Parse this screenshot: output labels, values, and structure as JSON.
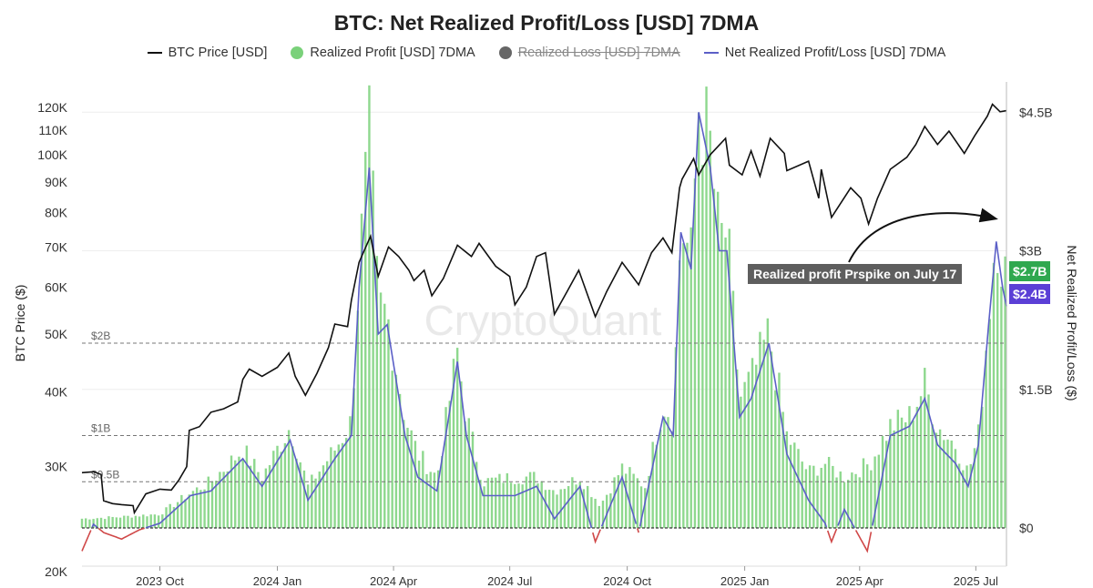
{
  "chart": {
    "title": "BTC: Net Realized Profit/Loss [USD] 7DMA",
    "watermark": "CryptoQuant",
    "legend": [
      {
        "label": "BTC Price [USD]",
        "marker": "line",
        "color": "#111111",
        "hidden": false
      },
      {
        "label": "Realized Profit [USD] 7DMA",
        "marker": "dot",
        "color": "#7ad17a",
        "hidden": false
      },
      {
        "label": "Realized Loss [USD] 7DMA",
        "marker": "dot",
        "color": "#666666",
        "hidden": true
      },
      {
        "label": "Net Realized Profit/Loss [USD] 7DMA",
        "marker": "line",
        "color": "#5b5fc7",
        "hidden": false
      }
    ],
    "annotation": "Realized profit Prspike on July 17",
    "badges": {
      "profit": {
        "label": "$2.7B",
        "color": "#2fa84f"
      },
      "net": {
        "label": "$2.4B",
        "color": "#5b3fd6"
      }
    }
  },
  "chart_data": {
    "type": "bar",
    "title": "BTC: Net Realized Profit/Loss [USD] 7DMA",
    "x_ticks": [
      "2023 Oct",
      "2024 Jan",
      "2024 Apr",
      "2024 Jul",
      "2024 Oct",
      "2025 Jan",
      "2025 Apr",
      "2025 Jul"
    ],
    "x_range": [
      "2023-08-01",
      "2025-07-25"
    ],
    "y_left": {
      "label": "BTC Price ($)",
      "scale": "log",
      "range": [
        20000,
        125000
      ],
      "ticks": [
        {
          "label": "120K",
          "value": 120000
        },
        {
          "label": "110K",
          "value": 110000
        },
        {
          "label": "100K",
          "value": 100000
        },
        {
          "label": "90K",
          "value": 90000
        },
        {
          "label": "80K",
          "value": 80000
        },
        {
          "label": "70K",
          "value": 70000
        },
        {
          "label": "60K",
          "value": 60000
        },
        {
          "label": "50K",
          "value": 50000
        },
        {
          "label": "40K",
          "value": 40000
        },
        {
          "label": "30K",
          "value": 30000
        },
        {
          "label": "20K",
          "value": 20000
        }
      ]
    },
    "y_right": {
      "label": "Net Realized Profit/Loss ($)",
      "range": [
        -0.35,
        5.0
      ],
      "unit": "billion USD",
      "ticks": [
        {
          "label": "$4.5B",
          "value": 4.5
        },
        {
          "label": "$3B",
          "value": 3.0
        },
        {
          "label": "$1.5B",
          "value": 1.5
        },
        {
          "label": "$0",
          "value": 0
        }
      ]
    },
    "reference_lines": [
      {
        "label": "$2B",
        "value": 2.0
      },
      {
        "label": "$1B",
        "value": 1.0
      },
      {
        "label": "$0.5B",
        "value": 0.5
      }
    ],
    "series": [
      {
        "name": "BTC Price [USD]",
        "axis": "left",
        "color": "#111111",
        "points": [
          [
            "2023-08-01",
            29300
          ],
          [
            "2023-08-10",
            29400
          ],
          [
            "2023-08-16",
            29100
          ],
          [
            "2023-08-18",
            26300
          ],
          [
            "2023-08-25",
            26000
          ],
          [
            "2023-09-01",
            25900
          ],
          [
            "2023-09-10",
            25800
          ],
          [
            "2023-09-11",
            25100
          ],
          [
            "2023-09-20",
            27000
          ],
          [
            "2023-10-01",
            27500
          ],
          [
            "2023-10-10",
            27400
          ],
          [
            "2023-10-16",
            28500
          ],
          [
            "2023-10-22",
            30000
          ],
          [
            "2023-10-24",
            34500
          ],
          [
            "2023-11-01",
            35000
          ],
          [
            "2023-11-10",
            37000
          ],
          [
            "2023-11-20",
            37500
          ],
          [
            "2023-12-01",
            38500
          ],
          [
            "2023-12-05",
            42000
          ],
          [
            "2023-12-10",
            43700
          ],
          [
            "2023-12-20",
            42500
          ],
          [
            "2024-01-01",
            44000
          ],
          [
            "2024-01-10",
            46500
          ],
          [
            "2024-01-15",
            42500
          ],
          [
            "2024-01-23",
            39500
          ],
          [
            "2024-02-01",
            43000
          ],
          [
            "2024-02-10",
            47500
          ],
          [
            "2024-02-15",
            52000
          ],
          [
            "2024-02-25",
            51500
          ],
          [
            "2024-02-28",
            57000
          ],
          [
            "2024-03-05",
            66000
          ],
          [
            "2024-03-14",
            73000
          ],
          [
            "2024-03-20",
            62500
          ],
          [
            "2024-03-28",
            70000
          ],
          [
            "2024-04-05",
            67500
          ],
          [
            "2024-04-13",
            64000
          ],
          [
            "2024-04-17",
            61500
          ],
          [
            "2024-04-25",
            64000
          ],
          [
            "2024-05-01",
            58000
          ],
          [
            "2024-05-10",
            62000
          ],
          [
            "2024-05-21",
            70500
          ],
          [
            "2024-06-01",
            67500
          ],
          [
            "2024-06-07",
            71000
          ],
          [
            "2024-06-20",
            65000
          ],
          [
            "2024-07-01",
            62500
          ],
          [
            "2024-07-05",
            56000
          ],
          [
            "2024-07-14",
            60000
          ],
          [
            "2024-07-22",
            67500
          ],
          [
            "2024-07-29",
            68500
          ],
          [
            "2024-08-05",
            54000
          ],
          [
            "2024-08-15",
            59000
          ],
          [
            "2024-08-24",
            64000
          ],
          [
            "2024-09-06",
            53500
          ],
          [
            "2024-09-15",
            59000
          ],
          [
            "2024-09-27",
            66000
          ],
          [
            "2024-10-10",
            60500
          ],
          [
            "2024-10-20",
            68500
          ],
          [
            "2024-10-29",
            72500
          ],
          [
            "2024-11-05",
            68500
          ],
          [
            "2024-11-11",
            88000
          ],
          [
            "2024-11-13",
            91000
          ],
          [
            "2024-11-22",
            98500
          ],
          [
            "2024-11-26",
            92500
          ],
          [
            "2024-12-05",
            100000
          ],
          [
            "2024-12-17",
            106500
          ],
          [
            "2024-12-20",
            96000
          ],
          [
            "2024-12-30",
            92500
          ],
          [
            "2025-01-06",
            101500
          ],
          [
            "2025-01-13",
            92000
          ],
          [
            "2025-01-21",
            106500
          ],
          [
            "2025-02-01",
            100500
          ],
          [
            "2025-02-03",
            94000
          ],
          [
            "2025-02-20",
            97500
          ],
          [
            "2025-02-28",
            84500
          ],
          [
            "2025-03-02",
            94500
          ],
          [
            "2025-03-10",
            78500
          ],
          [
            "2025-03-25",
            88000
          ],
          [
            "2025-04-02",
            84500
          ],
          [
            "2025-04-08",
            76500
          ],
          [
            "2025-04-15",
            84500
          ],
          [
            "2025-04-25",
            94500
          ],
          [
            "2025-05-08",
            99000
          ],
          [
            "2025-05-15",
            104000
          ],
          [
            "2025-05-22",
            111500
          ],
          [
            "2025-06-01",
            104000
          ],
          [
            "2025-06-10",
            109500
          ],
          [
            "2025-06-22",
            100500
          ],
          [
            "2025-06-30",
            107500
          ],
          [
            "2025-07-10",
            116000
          ],
          [
            "2025-07-14",
            121500
          ],
          [
            "2025-07-20",
            118000
          ],
          [
            "2025-07-25",
            118500
          ]
        ]
      },
      {
        "name": "Realized Profit [USD] 7DMA",
        "axis": "right",
        "color": "#7ad17a",
        "points": [
          [
            "2023-08-01",
            0.1
          ],
          [
            "2023-09-01",
            0.12
          ],
          [
            "2023-10-01",
            0.15
          ],
          [
            "2023-10-25",
            0.38
          ],
          [
            "2023-11-10",
            0.5
          ],
          [
            "2023-12-05",
            0.85
          ],
          [
            "2023-12-20",
            0.55
          ],
          [
            "2024-01-11",
            1.1
          ],
          [
            "2024-01-25",
            0.45
          ],
          [
            "2024-02-15",
            0.85
          ],
          [
            "2024-02-28",
            1.15
          ],
          [
            "2024-03-05",
            2.8
          ],
          [
            "2024-03-13",
            4.2
          ],
          [
            "2024-03-20",
            2.4
          ],
          [
            "2024-03-27",
            2.3
          ],
          [
            "2024-04-10",
            1.2
          ],
          [
            "2024-04-20",
            0.8
          ],
          [
            "2024-05-05",
            0.55
          ],
          [
            "2024-05-21",
            1.9
          ],
          [
            "2024-05-28",
            1.2
          ],
          [
            "2024-06-10",
            0.5
          ],
          [
            "2024-07-05",
            0.55
          ],
          [
            "2024-07-22",
            0.55
          ],
          [
            "2024-08-05",
            0.4
          ],
          [
            "2024-08-25",
            0.55
          ],
          [
            "2024-09-10",
            0.25
          ],
          [
            "2024-09-27",
            0.65
          ],
          [
            "2024-10-15",
            0.45
          ],
          [
            "2024-10-29",
            1.35
          ],
          [
            "2024-11-06",
            1.2
          ],
          [
            "2024-11-12",
            3.3
          ],
          [
            "2024-11-20",
            2.9
          ],
          [
            "2024-11-26",
            4.6
          ],
          [
            "2024-12-05",
            4.1
          ],
          [
            "2024-12-12",
            3.1
          ],
          [
            "2024-12-18",
            3.2
          ],
          [
            "2024-12-28",
            1.4
          ],
          [
            "2025-01-06",
            1.6
          ],
          [
            "2025-01-20",
            2.1
          ],
          [
            "2025-02-03",
            1.0
          ],
          [
            "2025-02-20",
            0.6
          ],
          [
            "2025-03-05",
            0.7
          ],
          [
            "2025-03-20",
            0.55
          ],
          [
            "2025-04-09",
            0.7
          ],
          [
            "2025-04-25",
            1.1
          ],
          [
            "2025-05-10",
            1.2
          ],
          [
            "2025-05-22",
            1.55
          ],
          [
            "2025-06-01",
            1.1
          ],
          [
            "2025-06-15",
            0.9
          ],
          [
            "2025-06-25",
            0.6
          ],
          [
            "2025-07-03",
            1.0
          ],
          [
            "2025-07-11",
            2.3
          ],
          [
            "2025-07-17",
            3.3
          ],
          [
            "2025-07-22",
            2.85
          ],
          [
            "2025-07-25",
            2.7
          ]
        ]
      },
      {
        "name": "Net Realized Profit/Loss [USD] 7DMA",
        "axis": "right",
        "color": "#5b5fc7",
        "points": [
          [
            "2023-08-01",
            -0.25
          ],
          [
            "2023-08-10",
            0.04
          ],
          [
            "2023-08-18",
            -0.05
          ],
          [
            "2023-09-01",
            -0.12
          ],
          [
            "2023-09-15",
            -0.02
          ],
          [
            "2023-10-01",
            0.05
          ],
          [
            "2023-10-25",
            0.35
          ],
          [
            "2023-11-10",
            0.4
          ],
          [
            "2023-12-05",
            0.75
          ],
          [
            "2023-12-20",
            0.45
          ],
          [
            "2024-01-11",
            0.95
          ],
          [
            "2024-01-25",
            0.3
          ],
          [
            "2024-02-15",
            0.75
          ],
          [
            "2024-02-28",
            1.0
          ],
          [
            "2024-03-05",
            2.6
          ],
          [
            "2024-03-13",
            3.9
          ],
          [
            "2024-03-20",
            2.1
          ],
          [
            "2024-03-27",
            2.2
          ],
          [
            "2024-04-10",
            1.0
          ],
          [
            "2024-04-20",
            0.55
          ],
          [
            "2024-05-05",
            0.4
          ],
          [
            "2024-05-21",
            1.8
          ],
          [
            "2024-05-28",
            1.0
          ],
          [
            "2024-06-10",
            0.35
          ],
          [
            "2024-07-05",
            0.35
          ],
          [
            "2024-07-22",
            0.45
          ],
          [
            "2024-08-05",
            0.1
          ],
          [
            "2024-08-25",
            0.45
          ],
          [
            "2024-09-06",
            -0.15
          ],
          [
            "2024-09-15",
            0.15
          ],
          [
            "2024-09-27",
            0.55
          ],
          [
            "2024-10-10",
            -0.05
          ],
          [
            "2024-10-29",
            1.2
          ],
          [
            "2024-11-06",
            1.0
          ],
          [
            "2024-11-12",
            3.2
          ],
          [
            "2024-11-20",
            2.8
          ],
          [
            "2024-11-26",
            4.5
          ],
          [
            "2024-12-05",
            3.9
          ],
          [
            "2024-12-12",
            3.0
          ],
          [
            "2024-12-18",
            3.0
          ],
          [
            "2024-12-28",
            1.2
          ],
          [
            "2025-01-06",
            1.4
          ],
          [
            "2025-01-20",
            2.0
          ],
          [
            "2025-02-03",
            0.8
          ],
          [
            "2025-02-20",
            0.3
          ],
          [
            "2025-03-05",
            0.05
          ],
          [
            "2025-03-10",
            -0.15
          ],
          [
            "2025-03-20",
            0.2
          ],
          [
            "2025-04-07",
            -0.25
          ],
          [
            "2025-04-15",
            0.3
          ],
          [
            "2025-04-25",
            1.0
          ],
          [
            "2025-05-10",
            1.1
          ],
          [
            "2025-05-22",
            1.4
          ],
          [
            "2025-06-01",
            0.9
          ],
          [
            "2025-06-15",
            0.7
          ],
          [
            "2025-06-25",
            0.45
          ],
          [
            "2025-07-03",
            0.9
          ],
          [
            "2025-07-11",
            2.2
          ],
          [
            "2025-07-17",
            3.1
          ],
          [
            "2025-07-22",
            2.6
          ],
          [
            "2025-07-25",
            2.4
          ]
        ]
      }
    ]
  }
}
